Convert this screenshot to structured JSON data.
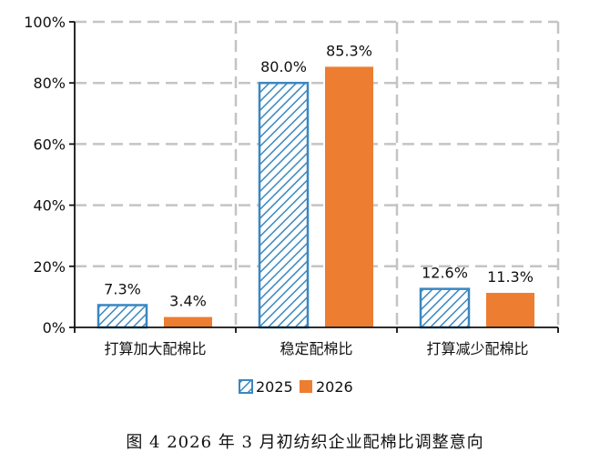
{
  "chart_data": {
    "type": "bar",
    "categories": [
      "打算加大配棉比",
      "稳定配棉比",
      "打算减少配棉比"
    ],
    "series": [
      {
        "name": "2025",
        "values": [
          7.3,
          80.0,
          12.6
        ],
        "labels": [
          "7.3%",
          "80.0%",
          "12.6%"
        ],
        "style": "hatched",
        "color": "#3a87c0"
      },
      {
        "name": "2026",
        "values": [
          3.4,
          85.3,
          11.3
        ],
        "labels": [
          "3.4%",
          "85.3%",
          "11.3%"
        ],
        "style": "solid",
        "color": "#ed7d31"
      }
    ],
    "ylim": [
      0,
      100
    ],
    "yticks": [
      "0%",
      "20%",
      "40%",
      "60%",
      "80%",
      "100%"
    ],
    "grid": true,
    "grid_style": "dashed",
    "legend_position": "bottom-center",
    "caption": "图 4   2026 年 3 月初纺织企业配棉比调整意向"
  }
}
